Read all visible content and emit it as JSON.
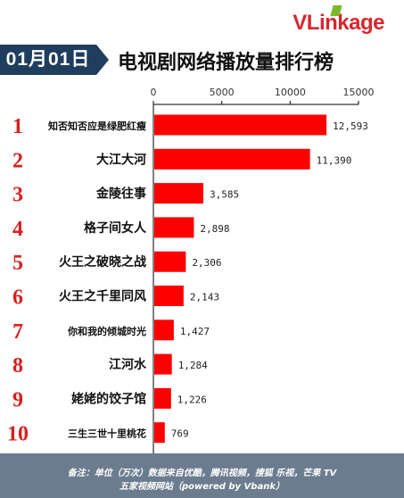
{
  "brand": {
    "logo": "VLinkage"
  },
  "header": {
    "date": "01月01日",
    "title": "电视剧网络播放量排行榜"
  },
  "colors": {
    "bar": "#ff0000",
    "rank": "#d91f1f",
    "badge": "#1f3d5c",
    "footer": "#6b7c8f"
  },
  "chart_data": {
    "type": "bar",
    "orientation": "horizontal",
    "title": "电视剧网络播放量排行榜",
    "xlim": [
      0,
      15000
    ],
    "x_ticks": [
      "0",
      "5000",
      "10000",
      "15000"
    ],
    "ranks": [
      "1",
      "2",
      "3",
      "4",
      "5",
      "6",
      "7",
      "8",
      "9",
      "10"
    ],
    "categories": [
      "知否知否应是绿肥红瘦",
      "大江大河",
      "金陵往事",
      "格子间女人",
      "火王之破晓之战",
      "火王之千里同风",
      "你和我的倾城时光",
      "江河水",
      "姥姥的饺子馆",
      "三生三世十里桃花"
    ],
    "values": [
      12593,
      11390,
      3585,
      2898,
      2306,
      2143,
      1427,
      1284,
      1226,
      769
    ],
    "value_labels": [
      "12,593",
      "11,390",
      "3,585",
      "2,898",
      "2,306",
      "2,143",
      "1,427",
      "1,284",
      "1,226",
      "769"
    ],
    "grid": false,
    "legend": "none"
  },
  "footer": {
    "line1": "备注：单位（万次）数据来自优酷，腾讯视频，搜狐 乐视，芒果 TV",
    "line2": "五家视频网站（powered by Vbank）"
  }
}
